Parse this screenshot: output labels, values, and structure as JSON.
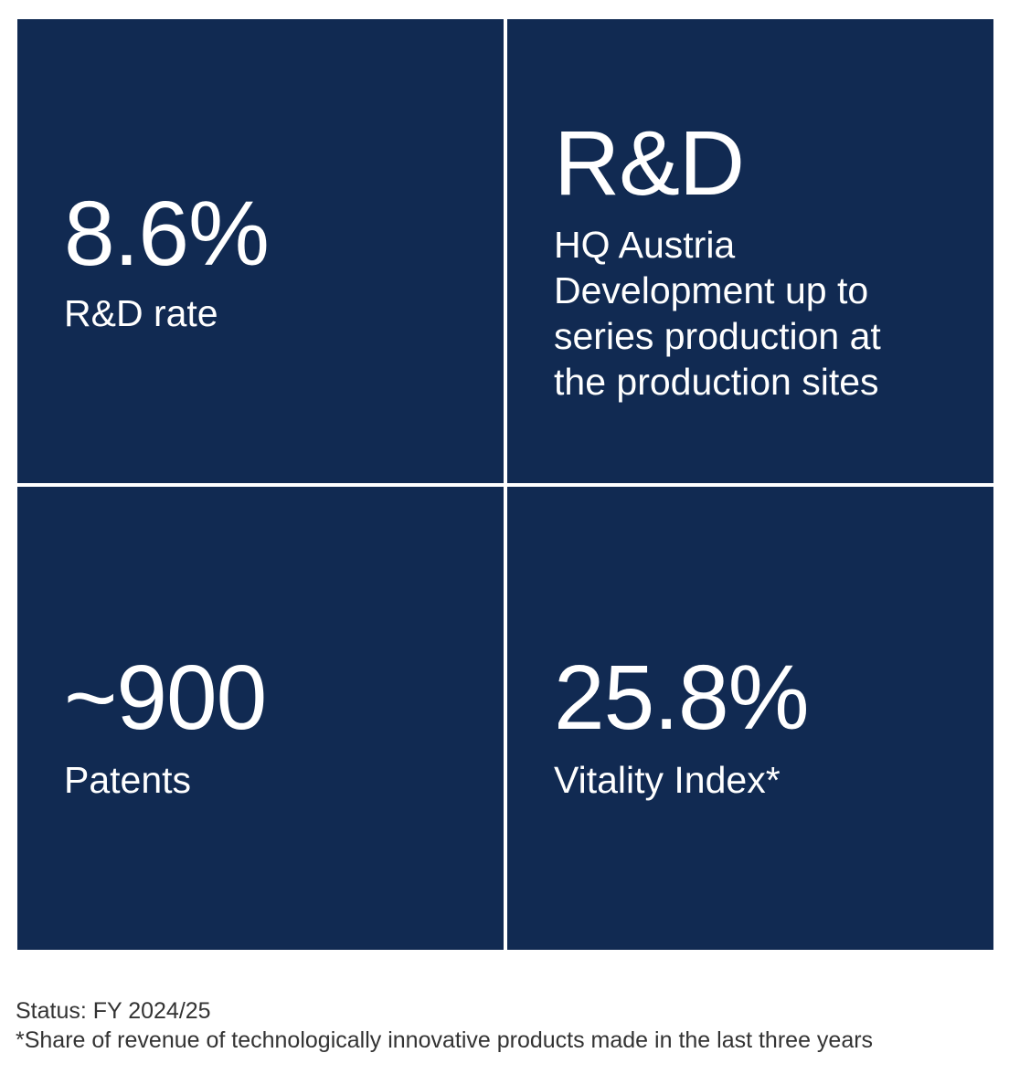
{
  "colors": {
    "tile_background": "#112a52",
    "tile_text": "#ffffff",
    "page_background": "#ffffff",
    "footer_text": "#333333"
  },
  "tiles": {
    "rd_rate": {
      "value": "8.6%",
      "label": "R&D rate"
    },
    "rd_hq": {
      "title": "R&D",
      "lines": [
        "HQ Austria",
        "Development up to",
        "series production at",
        "the production sites"
      ]
    },
    "patents": {
      "value": "~900",
      "label": "Patents"
    },
    "vitality": {
      "value": "25.8%",
      "label": "Vitality Index*"
    }
  },
  "footer": {
    "status": "Status: FY 2024/25",
    "note": "*Share of revenue of technologically innovative products made in the last three years"
  }
}
